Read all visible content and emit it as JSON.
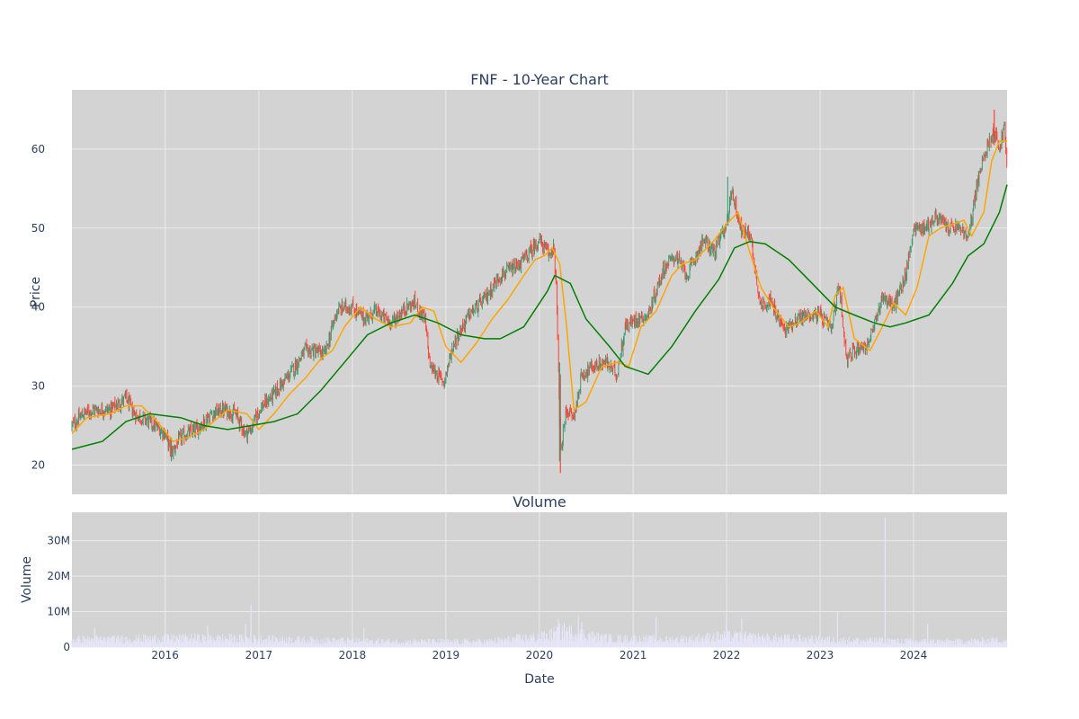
{
  "chart_data": [
    {
      "type": "candlestick",
      "title": "FNF - 10-Year Chart",
      "xlabel": "",
      "ylabel": "Price",
      "ylim": [
        16.3,
        67.5
      ],
      "y_ticks": [
        20,
        30,
        40,
        50,
        60
      ],
      "grid": true,
      "x_range": [
        "2015-01-02",
        "2024-12-31"
      ],
      "x_tick_labels": [
        "2016",
        "2017",
        "2018",
        "2019",
        "2020",
        "2021",
        "2022",
        "2023",
        "2024"
      ],
      "colors": {
        "increasing": "#3d9970",
        "decreasing": "#ff4136",
        "ma_short": "#ffa500",
        "ma_long": "#008000",
        "plot_bg": "#d3d3d3",
        "grid": "#ebebeb"
      },
      "series": [
        {
          "kind": "close_path",
          "x": [
            "2015-01-02",
            "2015-02-15",
            "2015-04-01",
            "2015-06-01",
            "2015-08-01",
            "2015-09-01",
            "2015-11-01",
            "2016-01-01",
            "2016-01-25",
            "2016-03-01",
            "2016-05-01",
            "2016-07-01",
            "2016-08-15",
            "2016-10-01",
            "2016-11-10",
            "2016-12-01",
            "2017-01-01",
            "2017-03-01",
            "2017-05-01",
            "2017-07-01",
            "2017-08-01",
            "2017-09-15",
            "2017-11-01",
            "2017-12-01",
            "2018-01-01",
            "2018-02-15",
            "2018-04-01",
            "2018-06-01",
            "2018-08-01",
            "2018-09-01",
            "2018-10-10",
            "2018-11-01",
            "2018-12-24",
            "2019-02-01",
            "2019-04-01",
            "2019-06-01",
            "2019-08-01",
            "2019-10-01",
            "2019-11-15",
            "2019-12-31",
            "2020-02-10",
            "2020-02-25",
            "2020-03-10",
            "2020-03-23",
            "2020-04-15",
            "2020-05-15",
            "2020-06-15",
            "2020-08-01",
            "2020-09-15",
            "2020-10-30",
            "2020-12-01",
            "2021-01-15",
            "2021-03-01",
            "2021-05-01",
            "2021-06-15",
            "2021-08-01",
            "2021-10-01",
            "2021-11-15",
            "2022-01-05",
            "2022-01-20",
            "2022-03-01",
            "2022-04-01",
            "2022-05-15",
            "2022-06-15",
            "2022-08-15",
            "2022-10-01",
            "2022-11-15",
            "2023-01-01",
            "2023-02-15",
            "2023-03-15",
            "2023-04-15",
            "2023-06-01",
            "2023-07-01",
            "2023-08-01",
            "2023-09-01",
            "2023-10-15",
            "2023-12-01",
            "2024-01-01",
            "2024-02-15",
            "2024-04-01",
            "2024-05-15",
            "2024-07-01",
            "2024-08-01",
            "2024-09-01",
            "2024-10-10",
            "2024-11-11",
            "2024-12-01",
            "2024-12-20",
            "2024-12-31"
          ],
          "values": [
            25.0,
            26.5,
            27.0,
            27.0,
            28.5,
            26.5,
            25.5,
            24.0,
            21.5,
            23.5,
            24.5,
            26.5,
            27.0,
            26.5,
            24.0,
            24.5,
            27.0,
            29.0,
            31.5,
            34.5,
            34.5,
            34.0,
            39.5,
            40.0,
            40.0,
            38.5,
            39.5,
            38.0,
            40.0,
            40.5,
            38.5,
            32.5,
            30.5,
            35.5,
            39.0,
            41.0,
            44.0,
            45.0,
            46.5,
            48.5,
            46.5,
            48.0,
            40.0,
            21.0,
            27.0,
            26.0,
            31.5,
            32.5,
            33.0,
            31.5,
            37.5,
            38.5,
            39.0,
            45.0,
            46.5,
            44.0,
            48.5,
            47.0,
            51.0,
            55.0,
            49.5,
            49.5,
            40.0,
            41.0,
            37.0,
            38.5,
            39.0,
            39.0,
            37.0,
            43.0,
            33.5,
            35.0,
            35.0,
            37.5,
            41.5,
            40.0,
            44.0,
            50.0,
            50.0,
            51.5,
            50.0,
            50.0,
            48.5,
            55.0,
            60.0,
            62.5,
            60.0,
            63.0,
            57.0
          ]
        },
        {
          "name": "",
          "kind": "moving_average_short",
          "x": [
            "2015-01-02",
            "2015-03-01",
            "2015-06-01",
            "2015-08-01",
            "2015-10-01",
            "2015-12-01",
            "2016-02-01",
            "2016-04-01",
            "2016-06-01",
            "2016-09-01",
            "2016-11-15",
            "2017-01-01",
            "2017-03-01",
            "2017-05-01",
            "2017-07-01",
            "2017-09-01",
            "2017-10-15",
            "2017-12-01",
            "2018-02-01",
            "2018-04-01",
            "2018-06-01",
            "2018-08-15",
            "2018-10-01",
            "2018-11-15",
            "2019-01-01",
            "2019-03-01",
            "2019-05-01",
            "2019-07-01",
            "2019-09-01",
            "2019-11-01",
            "2019-12-15",
            "2020-01-20",
            "2020-02-20",
            "2020-03-20",
            "2020-04-15",
            "2020-05-15",
            "2020-07-01",
            "2020-09-01",
            "2020-11-01",
            "2020-12-15",
            "2021-02-01",
            "2021-04-01",
            "2021-06-01",
            "2021-07-15",
            "2021-09-01",
            "2021-11-15",
            "2022-01-01",
            "2022-02-15",
            "2022-04-01",
            "2022-05-15",
            "2022-07-01",
            "2022-09-01",
            "2022-10-15",
            "2022-12-15",
            "2023-02-01",
            "2023-03-01",
            "2023-04-01",
            "2023-05-15",
            "2023-07-15",
            "2023-09-01",
            "2023-10-15",
            "2023-12-01",
            "2024-01-15",
            "2024-03-01",
            "2024-04-15",
            "2024-06-01",
            "2024-07-15",
            "2024-08-15",
            "2024-10-01",
            "2024-11-01",
            "2024-12-01",
            "2024-12-31"
          ],
          "values": [
            24.0,
            26.0,
            26.5,
            27.5,
            27.5,
            25.5,
            23.0,
            23.5,
            24.5,
            27.0,
            26.5,
            24.5,
            26.5,
            29.0,
            31.0,
            33.5,
            34.5,
            37.5,
            40.0,
            38.5,
            37.5,
            38.0,
            40.0,
            39.5,
            35.0,
            33.0,
            35.5,
            38.5,
            41.0,
            44.0,
            46.0,
            46.5,
            47.5,
            45.5,
            38.0,
            27.0,
            28.0,
            32.5,
            33.0,
            32.5,
            37.5,
            39.5,
            44.0,
            45.5,
            46.0,
            48.5,
            50.5,
            52.0,
            47.0,
            42.5,
            40.0,
            37.5,
            38.0,
            39.5,
            37.5,
            41.5,
            42.5,
            36.0,
            34.5,
            37.5,
            40.5,
            39.0,
            42.5,
            49.0,
            50.0,
            50.5,
            51.0,
            49.0,
            52.0,
            58.5,
            61.0,
            61.0
          ]
        },
        {
          "name": "",
          "kind": "moving_average_long",
          "x": [
            "2015-01-02",
            "2015-05-01",
            "2015-08-01",
            "2015-11-01",
            "2016-03-01",
            "2016-06-01",
            "2016-09-01",
            "2016-12-01",
            "2017-03-01",
            "2017-06-01",
            "2017-09-01",
            "2017-12-01",
            "2018-03-01",
            "2018-06-01",
            "2018-09-01",
            "2018-12-01",
            "2019-03-01",
            "2019-06-01",
            "2019-08-01",
            "2019-11-01",
            "2020-02-01",
            "2020-03-01",
            "2020-05-01",
            "2020-07-01",
            "2020-10-01",
            "2020-12-01",
            "2021-03-01",
            "2021-06-01",
            "2021-09-01",
            "2021-12-01",
            "2022-02-01",
            "2022-04-01",
            "2022-06-01",
            "2022-09-01",
            "2022-12-01",
            "2023-03-01",
            "2023-05-15",
            "2023-08-01",
            "2023-10-01",
            "2023-12-01",
            "2024-03-01",
            "2024-06-01",
            "2024-08-01",
            "2024-10-01",
            "2024-12-01",
            "2024-12-31"
          ],
          "values": [
            22.0,
            23.0,
            25.5,
            26.5,
            26.0,
            25.0,
            24.5,
            25.0,
            25.5,
            26.5,
            29.5,
            33.0,
            36.5,
            38.0,
            39.0,
            38.0,
            36.5,
            36.0,
            36.0,
            37.5,
            42.0,
            44.0,
            43.0,
            38.5,
            35.0,
            32.5,
            31.5,
            35.0,
            39.5,
            43.5,
            47.5,
            48.3,
            48.0,
            46.0,
            43.0,
            40.0,
            39.0,
            38.0,
            37.5,
            38.0,
            39.0,
            43.0,
            46.5,
            48.0,
            52.0,
            55.5
          ]
        }
      ]
    },
    {
      "type": "bar",
      "title": "Volume",
      "xlabel": "Date",
      "ylabel": "Volume",
      "ylim": [
        0,
        38000000
      ],
      "y_ticks": [
        0,
        10000000,
        20000000,
        30000000
      ],
      "y_tick_labels": [
        "0",
        "10M",
        "20M",
        "30M"
      ],
      "x_tick_labels": [
        "2016",
        "2017",
        "2018",
        "2019",
        "2020",
        "2021",
        "2022",
        "2023",
        "2024"
      ],
      "x_range": [
        "2015-01-02",
        "2024-12-31"
      ],
      "grid": true,
      "colors": {
        "bar": "#e6e6fa",
        "plot_bg": "#d3d3d3",
        "grid": "#ebebeb"
      },
      "spikes": [
        {
          "x": "2015-04-01",
          "value": 5500000
        },
        {
          "x": "2016-06-15",
          "value": 6000000
        },
        {
          "x": "2016-11-10",
          "value": 6500000
        },
        {
          "x": "2016-12-01",
          "value": 12000000
        },
        {
          "x": "2018-02-15",
          "value": 5500000
        },
        {
          "x": "2020-03-15",
          "value": 8000000
        },
        {
          "x": "2020-06-01",
          "value": 9000000
        },
        {
          "x": "2020-06-15",
          "value": 7000000
        },
        {
          "x": "2021-04-01",
          "value": 8500000
        },
        {
          "x": "2021-12-31",
          "value": 8500000
        },
        {
          "x": "2022-03-01",
          "value": 8000000
        },
        {
          "x": "2023-03-10",
          "value": 10000000
        },
        {
          "x": "2023-09-12",
          "value": 36500000
        },
        {
          "x": "2024-02-25",
          "value": 6500000
        }
      ],
      "baseline": [
        {
          "x": "2015-01-02",
          "value": 2000000
        },
        {
          "x": "2016-06-01",
          "value": 2500000
        },
        {
          "x": "2017-01-01",
          "value": 2200000
        },
        {
          "x": "2018-06-01",
          "value": 1500000
        },
        {
          "x": "2019-06-01",
          "value": 1500000
        },
        {
          "x": "2020-02-01",
          "value": 3000000
        },
        {
          "x": "2020-04-01",
          "value": 4500000
        },
        {
          "x": "2020-09-01",
          "value": 2500000
        },
        {
          "x": "2021-06-01",
          "value": 2000000
        },
        {
          "x": "2022-01-01",
          "value": 3000000
        },
        {
          "x": "2022-06-01",
          "value": 2500000
        },
        {
          "x": "2023-06-01",
          "value": 1800000
        },
        {
          "x": "2024-06-01",
          "value": 1500000
        },
        {
          "x": "2024-12-31",
          "value": 2000000
        }
      ]
    }
  ]
}
